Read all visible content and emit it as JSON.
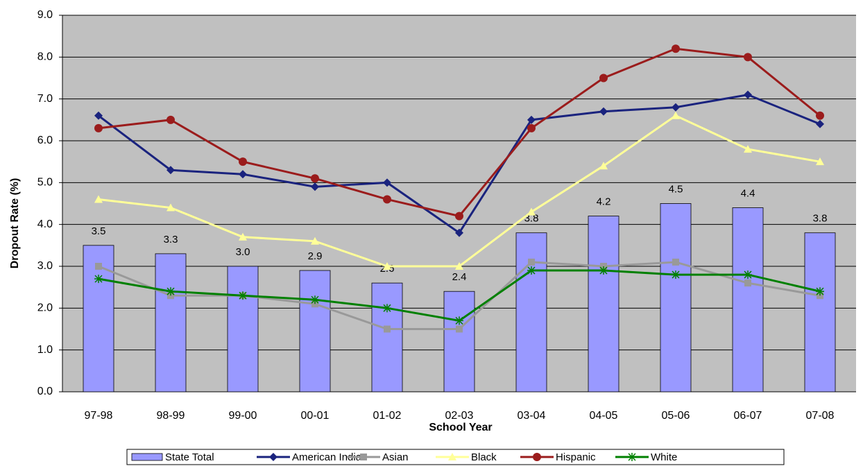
{
  "chart_data": {
    "type": "bar",
    "x_label": "School Year",
    "y_label": "Dropout Rate (%)",
    "categories": [
      "97-98",
      "98-99",
      "99-00",
      "00-01",
      "01-02",
      "02-03",
      "03-04",
      "04-05",
      "05-06",
      "06-07",
      "07-08"
    ],
    "ylim": [
      0,
      9
    ],
    "yticks": [
      {
        "value": 0,
        "label": "0.0"
      },
      {
        "value": 1,
        "label": "1.0"
      },
      {
        "value": 2,
        "label": "2.0"
      },
      {
        "value": 3,
        "label": "3.0"
      },
      {
        "value": 4,
        "label": "4.0"
      },
      {
        "value": 5,
        "label": "5.0"
      },
      {
        "value": 6,
        "label": "6.0"
      },
      {
        "value": 7,
        "label": "7.0"
      },
      {
        "value": 8,
        "label": "8.0"
      },
      {
        "value": 9,
        "label": "9.0"
      }
    ],
    "grid": true,
    "legend": "bottom",
    "series": [
      {
        "name": "State Total",
        "type": "bar",
        "color": "#9999ff",
        "values": [
          3.5,
          3.3,
          3.0,
          2.9,
          2.6,
          2.4,
          3.8,
          4.2,
          4.5,
          4.4,
          3.8
        ],
        "value_labels": [
          "3.5",
          "3.3",
          "3.0",
          "2.9",
          "2.6",
          "2.4",
          "3.8",
          "4.2",
          "4.5",
          "4.4",
          "3.8"
        ]
      },
      {
        "name": "American Indian",
        "type": "line",
        "marker": "diamond",
        "color": "#1a237e",
        "values": [
          6.6,
          5.3,
          5.2,
          4.9,
          5.0,
          3.8,
          6.5,
          6.7,
          6.8,
          7.1,
          6.4
        ]
      },
      {
        "name": "Asian",
        "type": "line",
        "marker": "square",
        "color": "#999999",
        "values": [
          3.0,
          2.3,
          2.3,
          2.1,
          1.5,
          1.5,
          3.1,
          3.0,
          3.1,
          2.6,
          2.3
        ]
      },
      {
        "name": "Black",
        "type": "line",
        "marker": "triangle",
        "color": "#ffff99",
        "values": [
          4.6,
          4.4,
          3.7,
          3.6,
          3.0,
          3.0,
          4.3,
          5.4,
          6.6,
          5.8,
          5.5
        ]
      },
      {
        "name": "Hispanic",
        "type": "line",
        "marker": "circle",
        "color": "#9b1c1c",
        "values": [
          6.3,
          6.5,
          5.5,
          5.1,
          4.6,
          4.2,
          6.3,
          7.5,
          8.2,
          8.0,
          6.6
        ]
      },
      {
        "name": "White",
        "type": "line",
        "marker": "star",
        "color": "#008000",
        "values": [
          2.7,
          2.4,
          2.3,
          2.2,
          2.0,
          1.7,
          2.9,
          2.9,
          2.8,
          2.8,
          2.4
        ]
      }
    ]
  }
}
